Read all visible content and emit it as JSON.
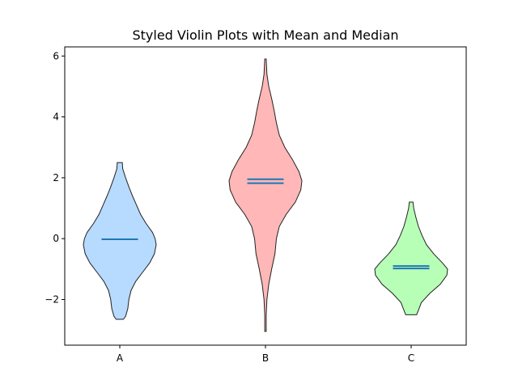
{
  "chart_data": {
    "type": "violin",
    "title": "Styled Violin Plots with Mean and Median",
    "xlabel": "",
    "ylabel": "",
    "categories": [
      "A",
      "B",
      "C"
    ],
    "ylim": [
      -3.5,
      6.3
    ],
    "yticks": [
      -2,
      0,
      2,
      4,
      6
    ],
    "ytick_labels": [
      "−2",
      "0",
      "2",
      "4",
      "6"
    ],
    "grid": false,
    "line_color": "#1f77b4",
    "violins": [
      {
        "name": "A",
        "color": "#aad4ff",
        "min": -2.65,
        "max": 2.5,
        "mean": -0.02,
        "median": -0.02,
        "profile": [
          [
            -2.65,
            0.1
          ],
          [
            -2.55,
            0.16
          ],
          [
            -2.3,
            0.22
          ],
          [
            -2.0,
            0.25
          ],
          [
            -1.7,
            0.31
          ],
          [
            -1.4,
            0.44
          ],
          [
            -1.1,
            0.63
          ],
          [
            -0.8,
            0.82
          ],
          [
            -0.5,
            0.95
          ],
          [
            -0.2,
            1.0
          ],
          [
            0.0,
            0.97
          ],
          [
            0.2,
            0.9
          ],
          [
            0.5,
            0.72
          ],
          [
            0.8,
            0.57
          ],
          [
            1.1,
            0.46
          ],
          [
            1.4,
            0.35
          ],
          [
            1.7,
            0.25
          ],
          [
            2.0,
            0.16
          ],
          [
            2.3,
            0.08
          ],
          [
            2.5,
            0.07
          ]
        ]
      },
      {
        "name": "B",
        "color": "#ffaaaa",
        "min": -3.05,
        "max": 5.9,
        "mean": 1.95,
        "median": 1.82,
        "profile": [
          [
            -3.05,
            0.02
          ],
          [
            -2.5,
            0.02
          ],
          [
            -2.0,
            0.04
          ],
          [
            -1.5,
            0.09
          ],
          [
            -1.0,
            0.17
          ],
          [
            -0.5,
            0.26
          ],
          [
            0.0,
            0.3
          ],
          [
            0.4,
            0.38
          ],
          [
            0.8,
            0.57
          ],
          [
            1.2,
            0.82
          ],
          [
            1.6,
            0.97
          ],
          [
            1.9,
            1.0
          ],
          [
            2.2,
            0.92
          ],
          [
            2.6,
            0.74
          ],
          [
            3.0,
            0.53
          ],
          [
            3.4,
            0.38
          ],
          [
            3.8,
            0.3
          ],
          [
            4.2,
            0.24
          ],
          [
            4.6,
            0.17
          ],
          [
            5.0,
            0.09
          ],
          [
            5.4,
            0.04
          ],
          [
            5.9,
            0.02
          ]
        ]
      },
      {
        "name": "C",
        "color": "#aaffaa",
        "min": -2.5,
        "max": 1.2,
        "mean": -0.9,
        "median": -0.98,
        "profile": [
          [
            -2.5,
            0.15
          ],
          [
            -2.35,
            0.2
          ],
          [
            -2.1,
            0.28
          ],
          [
            -1.8,
            0.51
          ],
          [
            -1.5,
            0.8
          ],
          [
            -1.2,
            0.98
          ],
          [
            -1.0,
            1.0
          ],
          [
            -0.8,
            0.86
          ],
          [
            -0.5,
            0.62
          ],
          [
            -0.2,
            0.42
          ],
          [
            0.1,
            0.3
          ],
          [
            0.4,
            0.2
          ],
          [
            0.7,
            0.13
          ],
          [
            1.0,
            0.07
          ],
          [
            1.2,
            0.05
          ]
        ]
      }
    ]
  }
}
